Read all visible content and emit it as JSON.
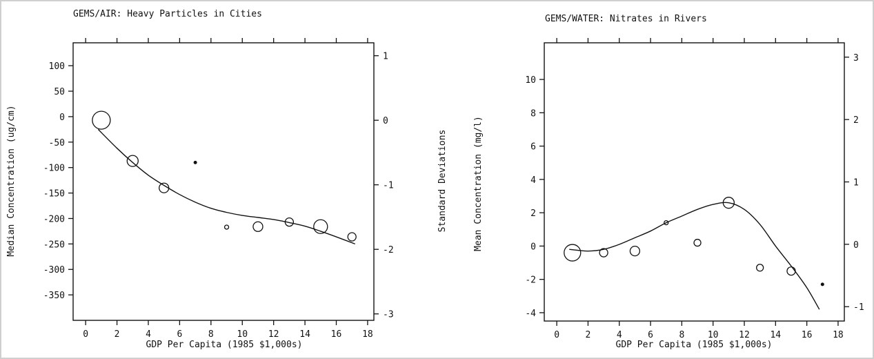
{
  "chart_data": [
    {
      "type": "scatter",
      "title": "GEMS/AIR: Heavy Particles in Cities",
      "xlabel": "GDP Per Capita (1985 $1,000s)",
      "ylabel": "Median Concentration (ug/cm)",
      "y2label": "Standard Deviations",
      "xlim": [
        -0.8,
        18.4
      ],
      "ylim": [
        -400,
        145
      ],
      "y2lim": [
        -3.1,
        1.2
      ],
      "xticks": [
        0,
        2,
        4,
        6,
        8,
        10,
        12,
        14,
        16,
        18
      ],
      "yticks": [
        100,
        50,
        0,
        -50,
        -100,
        -150,
        -200,
        -250,
        -300,
        -350
      ],
      "y2ticks": [
        1,
        0,
        -1,
        -2,
        -3
      ],
      "grid": false,
      "series": [
        {
          "kind": "points",
          "x": [
            1,
            3,
            5,
            7,
            9,
            11,
            13,
            15,
            17
          ],
          "y": [
            -7,
            -87,
            -140,
            -90,
            -217,
            -216,
            -207,
            -216,
            -236
          ],
          "size": [
            13,
            8,
            7,
            2,
            3,
            7,
            6,
            10,
            6
          ]
        },
        {
          "kind": "fit",
          "x": [
            0.8,
            2,
            3,
            4,
            5,
            6,
            7,
            8,
            9,
            10,
            11,
            12,
            13,
            14,
            15,
            16,
            17.2
          ],
          "y": [
            -25,
            -62,
            -90,
            -115,
            -135,
            -153,
            -168,
            -180,
            -188,
            -194,
            -198,
            -202,
            -208,
            -215,
            -225,
            -236,
            -250
          ]
        }
      ]
    },
    {
      "type": "scatter",
      "title": "GEMS/WATER: Nitrates in Rivers",
      "xlabel": "GDP Per Capita (1985 $1,000s)",
      "ylabel": "Mean Concentration (mg/l)",
      "xlim": [
        -0.8,
        18.4
      ],
      "ylim": [
        -4.5,
        12.2
      ],
      "y2lim": [
        -1.23,
        3.23
      ],
      "xticks": [
        0,
        2,
        4,
        6,
        8,
        10,
        12,
        14,
        16,
        18
      ],
      "yticks": [
        10,
        8,
        6,
        4,
        2,
        0,
        -2,
        -4
      ],
      "y2ticks": [
        3,
        2,
        1,
        0,
        -1
      ],
      "grid": false,
      "series": [
        {
          "kind": "points",
          "x": [
            1,
            3,
            5,
            7,
            9,
            11,
            13,
            15,
            17
          ],
          "y": [
            -0.4,
            -0.4,
            -0.3,
            1.4,
            0.2,
            2.6,
            -1.3,
            -1.5,
            -2.3
          ],
          "size": [
            12,
            6,
            7,
            3,
            5,
            8,
            5,
            6,
            2
          ]
        },
        {
          "kind": "fit",
          "x": [
            0.8,
            2,
            3,
            4,
            5,
            6,
            7,
            8,
            9,
            10,
            11,
            12,
            13,
            14,
            15,
            16,
            16.8
          ],
          "y": [
            -0.2,
            -0.3,
            -0.2,
            0.1,
            0.5,
            0.9,
            1.4,
            1.8,
            2.2,
            2.5,
            2.6,
            2.2,
            1.3,
            0,
            -1.2,
            -2.5,
            -3.8
          ]
        }
      ]
    }
  ]
}
